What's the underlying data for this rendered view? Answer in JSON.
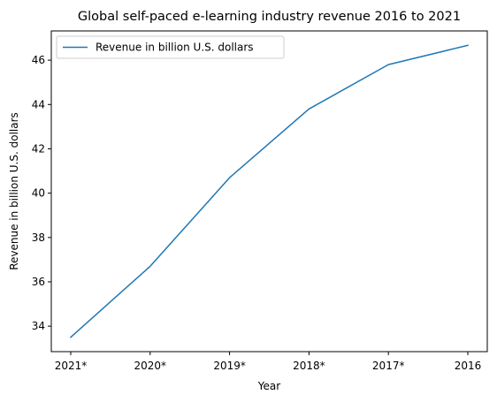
{
  "chart_data": {
    "type": "line",
    "title": "Global self-paced e-learning industry revenue 2016 to 2021",
    "xlabel": "Year",
    "ylabel": "Revenue in billion U.S. dollars",
    "categories": [
      "2021*",
      "2020*",
      "2019*",
      "2018*",
      "2017*",
      "2016"
    ],
    "series": [
      {
        "name": "Revenue in billion U.S. dollars",
        "values": [
          33.5,
          36.7,
          40.7,
          43.8,
          45.8,
          46.67
        ],
        "color": "#1f77b4"
      }
    ],
    "yticks": [
      34,
      36,
      38,
      40,
      42,
      44,
      46
    ],
    "ylim": [
      32.85,
      47.32
    ],
    "grid": false,
    "legend_position": "upper-left"
  }
}
